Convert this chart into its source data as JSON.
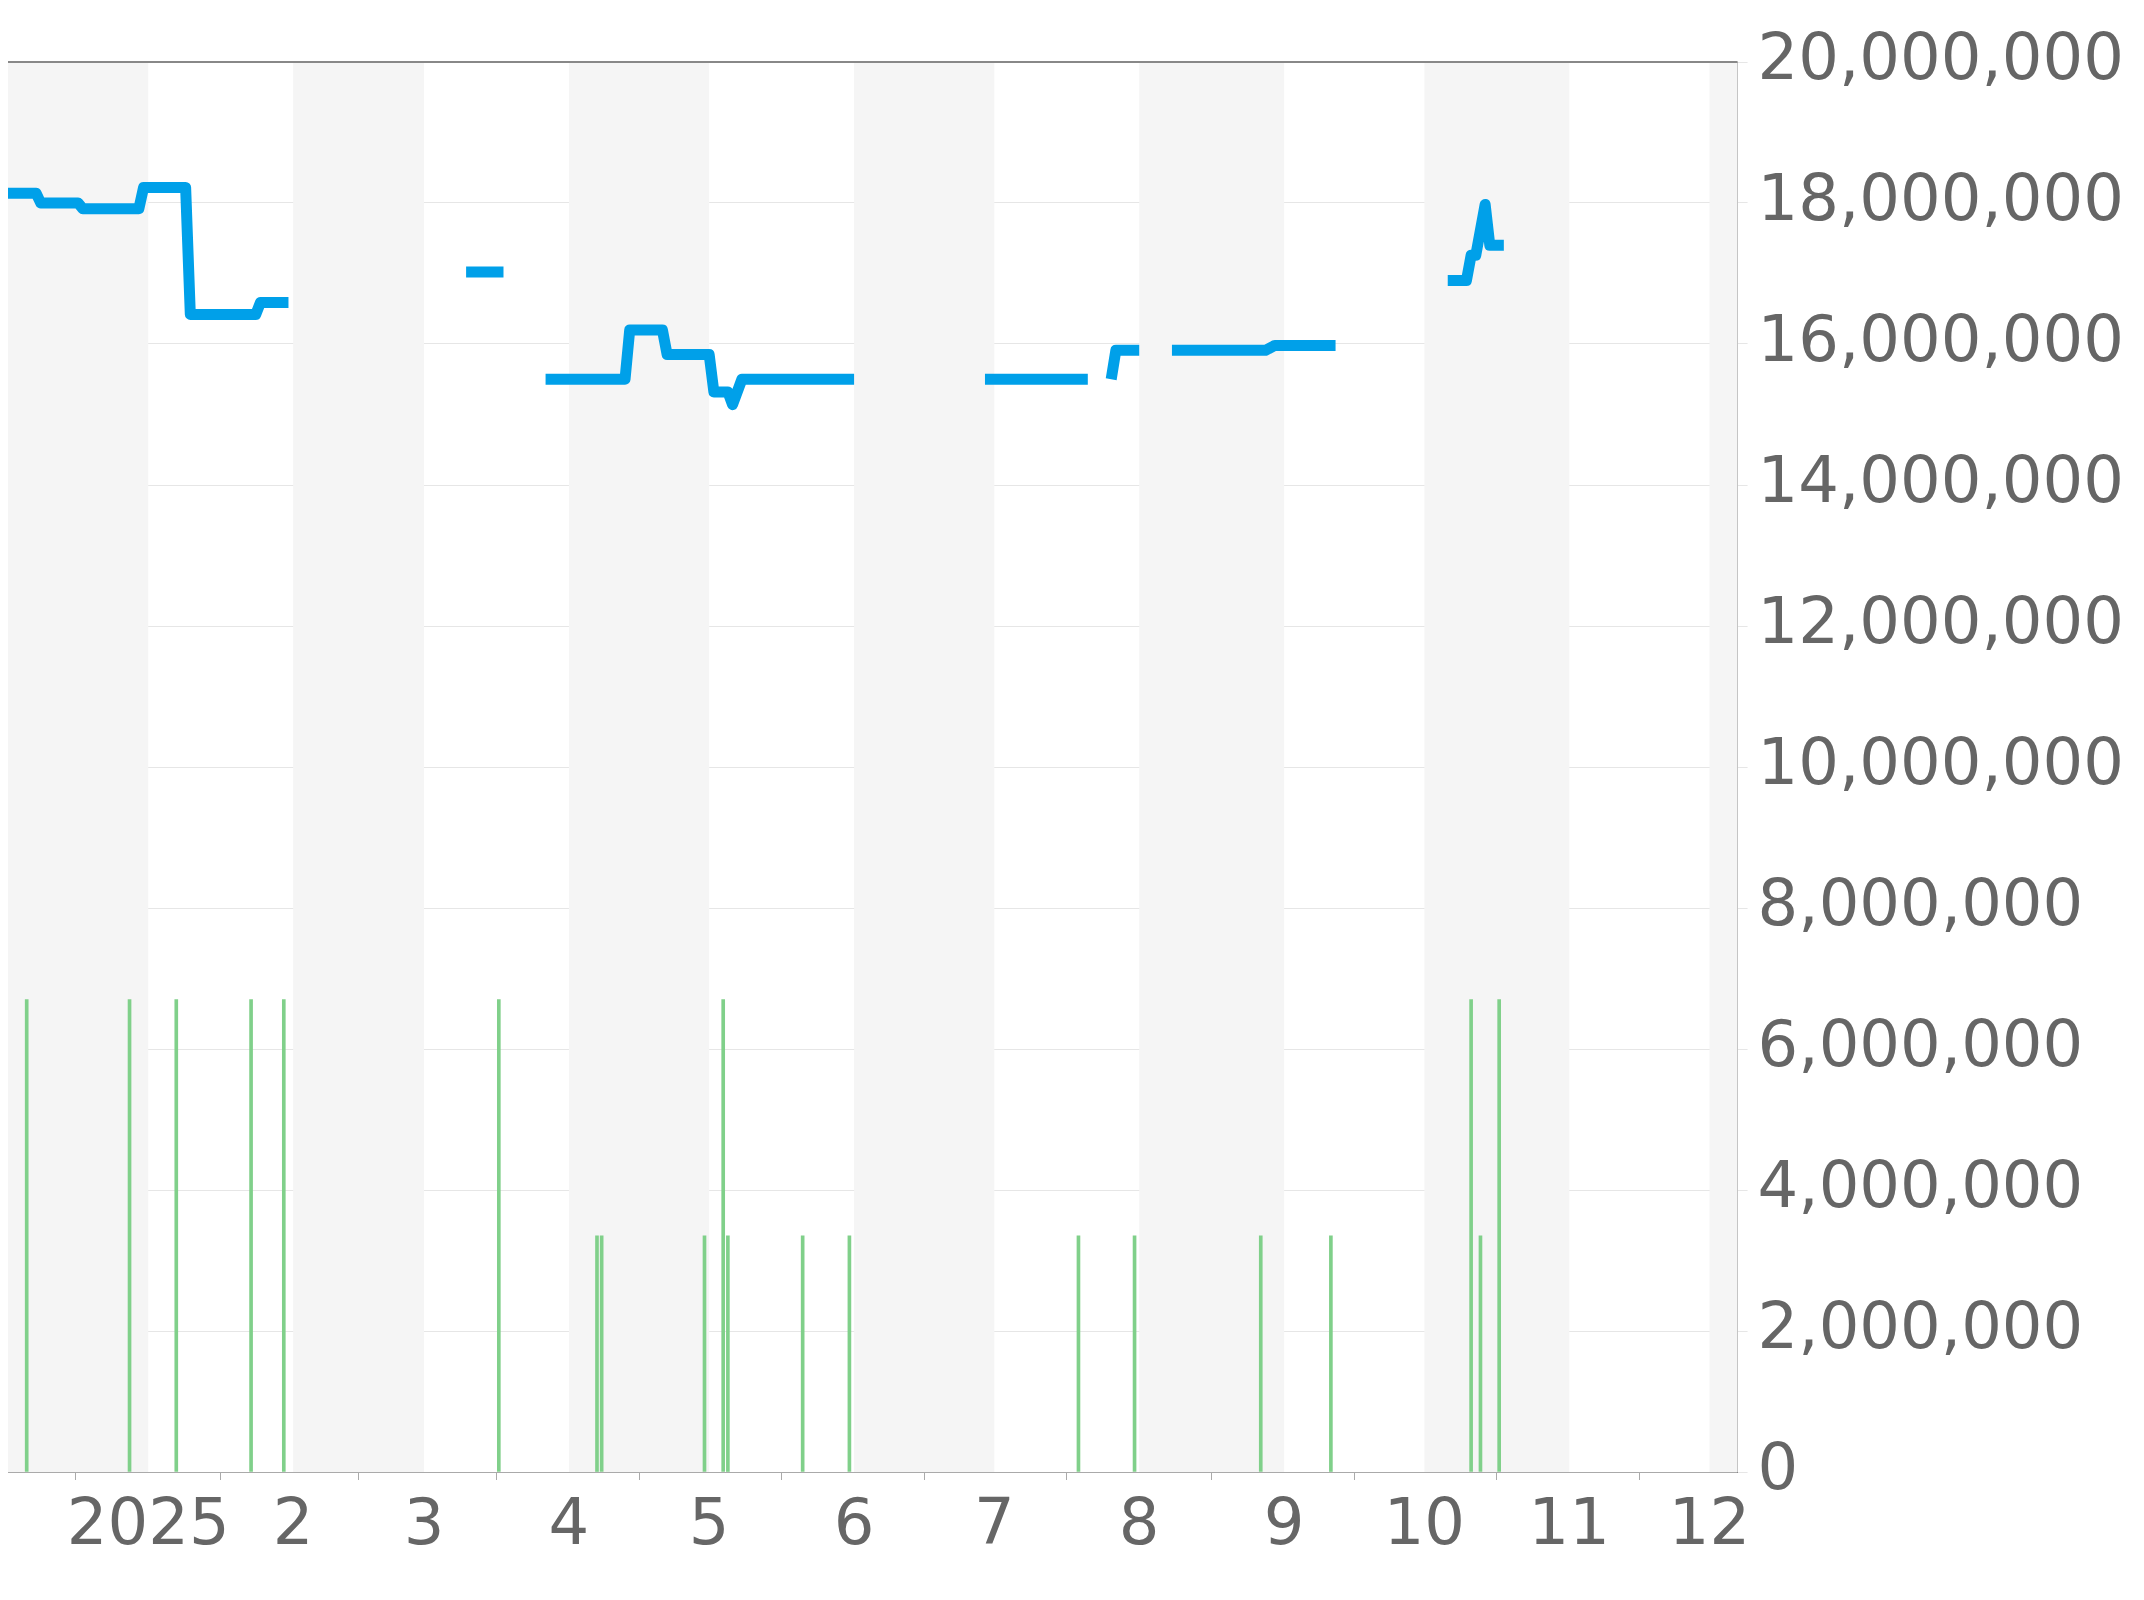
{
  "chart_data": {
    "type": "line",
    "x": [
      "2024-12-02",
      "2024-12-08",
      "2024-12-09",
      "2024-12-17",
      "2024-12-18",
      "2024-12-30",
      "2024-12-31",
      "2025-01-09",
      "2025-01-10",
      "2025-01-24",
      "2025-01-25",
      "2025-01-31",
      "2025-02-20",
      "2025-03-10",
      "2025-03-18",
      "2025-03-22",
      "2025-03-27",
      "2025-04-13",
      "2025-04-14",
      "2025-04-21",
      "2025-04-22",
      "2025-05-01",
      "2025-05-02",
      "2025-05-05",
      "2025-05-06",
      "2025-05-08",
      "2025-06-01",
      "2025-06-15",
      "2025-06-29",
      "2025-07-21",
      "2025-07-23",
      "2025-07-26",
      "2025-07-27",
      "2025-08-01",
      "2025-08-04",
      "2025-08-08",
      "2025-08-28",
      "2025-08-30",
      "2025-09-12",
      "2025-09-25",
      "2025-10-06",
      "2025-10-10",
      "2025-10-11",
      "2025-10-12",
      "2025-10-14",
      "2025-10-15",
      "2025-10-18"
    ],
    "series": [
      {
        "color": "#00a0e9",
        "values": [
          18140000,
          18140000,
          18000000,
          18000000,
          17920000,
          17920000,
          18220000,
          18220000,
          16420000,
          16420000,
          16590000,
          16590000,
          null,
          17020000,
          17020000,
          null,
          15500000,
          15500000,
          16200000,
          16200000,
          15850000,
          15850000,
          15320000,
          15320000,
          15140000,
          15500000,
          15500000,
          null,
          15500000,
          15500000,
          null,
          15500000,
          15910000,
          15910000,
          null,
          15910000,
          15910000,
          15980000,
          15980000,
          null,
          16900000,
          16900000,
          17260000,
          17260000,
          17980000,
          17400000,
          17400000
        ]
      },
      {
        "type": "bar",
        "color": "#80d08a",
        "x": [
          "2024-12-06",
          "2024-12-28",
          "2025-01-07",
          "2025-01-23",
          "2025-01-30",
          "2025-03-17",
          "2025-04-07",
          "2025-04-08",
          "2025-04-30",
          "2025-05-04",
          "2025-05-05",
          "2025-05-21",
          "2025-05-31",
          "2025-07-19",
          "2025-07-31",
          "2025-08-27",
          "2025-09-11",
          "2025-10-11",
          "2025-10-13",
          "2025-10-17"
        ],
        "values": [
          6700000,
          6700000,
          6700000,
          6700000,
          6700000,
          6700000,
          3350000,
          3350000,
          3350000,
          6700000,
          3350000,
          3350000,
          3350000,
          3350000,
          3350000,
          3350000,
          3350000,
          6700000,
          3350000,
          6700000
        ]
      }
    ],
    "xlim": [
      "2024-12-02",
      "2025-12-07"
    ],
    "xticks": [
      {
        "value": "2025-01-01",
        "label": "2025"
      },
      {
        "value": "2025-02-01",
        "label": "2"
      },
      {
        "value": "2025-03-01",
        "label": "3"
      },
      {
        "value": "2025-04-01",
        "label": "4"
      },
      {
        "value": "2025-05-01",
        "label": "5"
      },
      {
        "value": "2025-06-01",
        "label": "6"
      },
      {
        "value": "2025-07-01",
        "label": "7"
      },
      {
        "value": "2025-08-01",
        "label": "8"
      },
      {
        "value": "2025-09-01",
        "label": "9"
      },
      {
        "value": "2025-10-01",
        "label": "10"
      },
      {
        "value": "2025-11-01",
        "label": "11"
      },
      {
        "value": "2025-12-01",
        "label": "12"
      }
    ],
    "ylim": [
      0,
      20000000
    ],
    "yticks": [
      {
        "value": 0,
        "label": "0"
      },
      {
        "value": 2000000,
        "label": "2,000,000"
      },
      {
        "value": 4000000,
        "label": "4,000,000"
      },
      {
        "value": 6000000,
        "label": "6,000,000"
      },
      {
        "value": 8000000,
        "label": "8,000,000"
      },
      {
        "value": 10000000,
        "label": "10,000,000"
      },
      {
        "value": 12000000,
        "label": "12,000,000"
      },
      {
        "value": 14000000,
        "label": "14,000,000"
      },
      {
        "value": 16000000,
        "label": "16,000,000"
      },
      {
        "value": 18000000,
        "label": "18,000,000"
      },
      {
        "value": 20000000,
        "label": "20,000,000"
      }
    ],
    "bands": [
      {
        "axis": "x",
        "from": "2024-12-02",
        "to": "2025-01-01",
        "color": "#f5f5f5"
      },
      {
        "axis": "x",
        "from": "2025-02-01",
        "to": "2025-03-01",
        "color": "#f5f5f5"
      },
      {
        "axis": "x",
        "from": "2025-04-01",
        "to": "2025-05-01",
        "color": "#f5f5f5"
      },
      {
        "axis": "x",
        "from": "2025-06-01",
        "to": "2025-07-01",
        "color": "#f5f5f5"
      },
      {
        "axis": "x",
        "from": "2025-08-01",
        "to": "2025-09-01",
        "color": "#f5f5f5"
      },
      {
        "axis": "x",
        "from": "2025-10-01",
        "to": "2025-11-01",
        "color": "#f5f5f5"
      },
      {
        "axis": "x",
        "from": "2025-12-01",
        "to": "2025-12-07",
        "color": "#f5f5f5"
      }
    ],
    "grid": "y",
    "legend": false,
    "marker": "none",
    "line_style": "solid"
  }
}
